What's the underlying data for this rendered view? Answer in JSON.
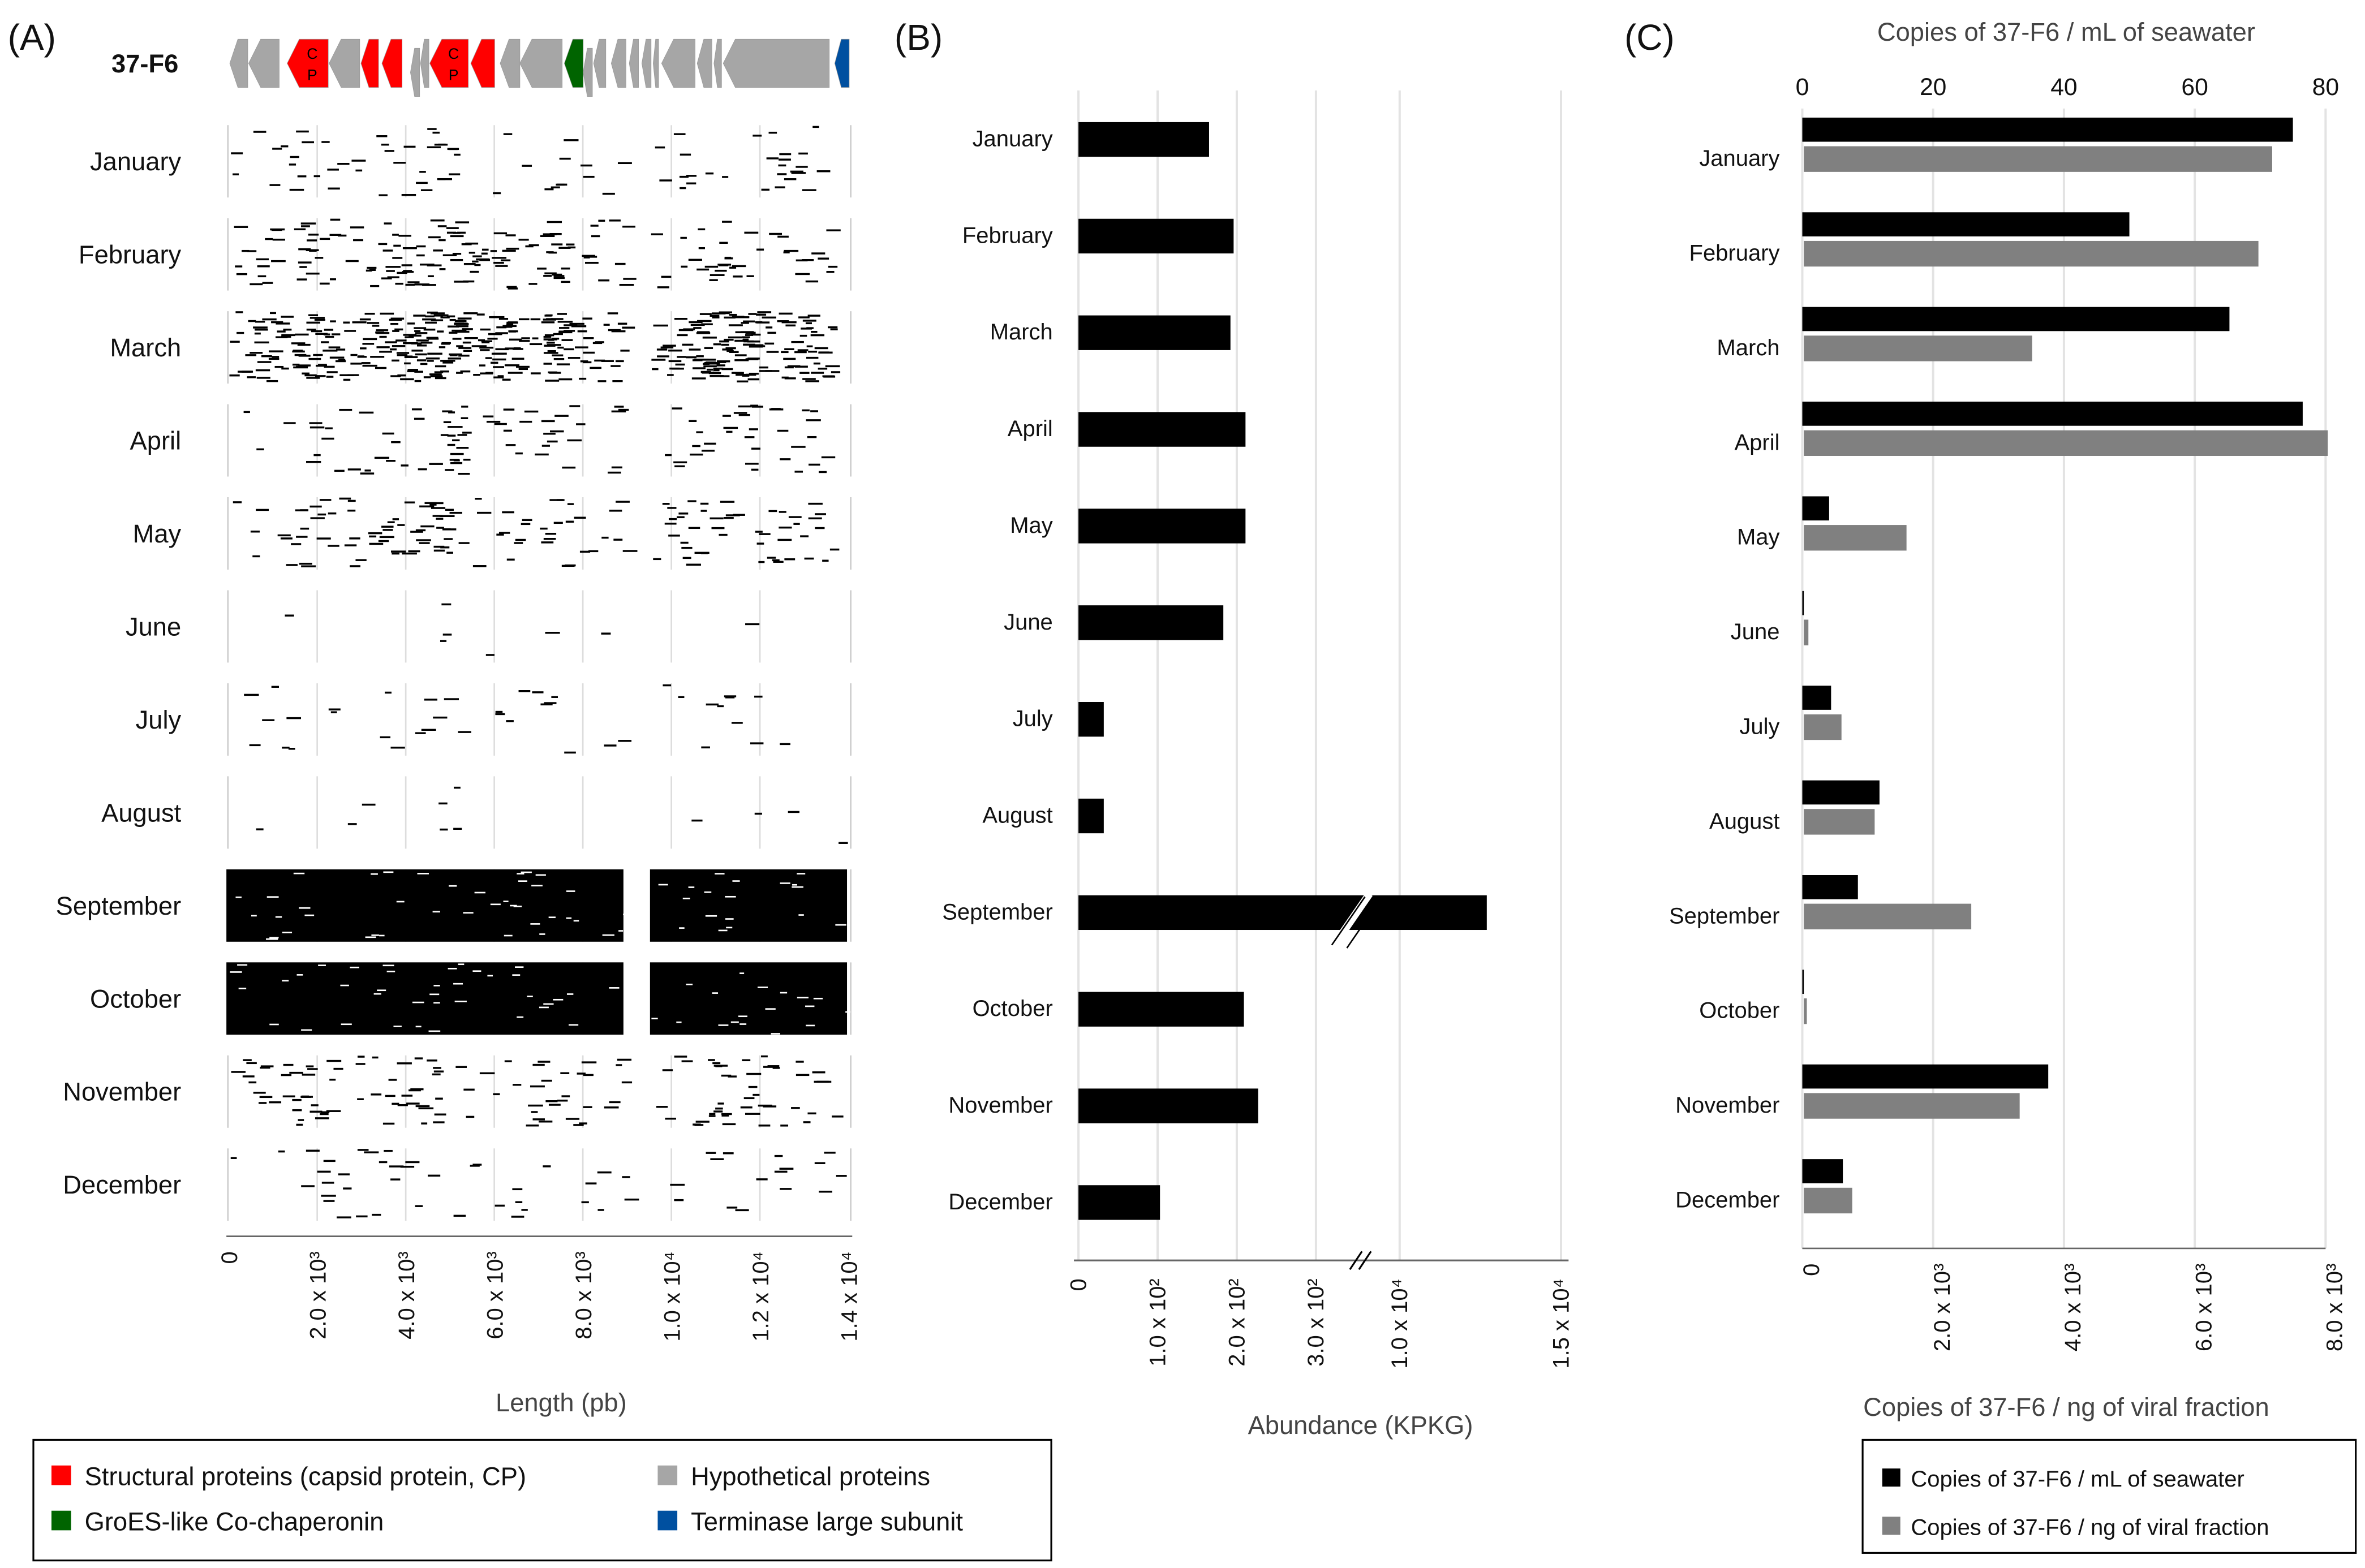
{
  "panel_labels": {
    "a": "(A)",
    "b": "(B)",
    "c": "(C)"
  },
  "colors": {
    "structural": "#ff0000",
    "hypothetical": "#a6a6a6",
    "groes": "#006400",
    "terminase": "#0050a0",
    "black_series": "#000000",
    "gray_series": "#808080"
  },
  "chart_data": [
    {
      "id": "A",
      "type": "scatter",
      "title": "37-F6",
      "xlabel": "Length (pb)",
      "xlim": [
        0,
        14000
      ],
      "x_ticks": [
        0,
        2000,
        4000,
        6000,
        8000,
        10000,
        12000,
        14000
      ],
      "x_tick_labels": [
        "0",
        "2.0 x 10³",
        "4.0 x 10³",
        "6.0 x 10³",
        "8.0 x 10³",
        "1.0 x 10⁴",
        "1.2 x 10⁴",
        "1.4 x 10⁴"
      ],
      "categories": [
        "January",
        "February",
        "March",
        "April",
        "May",
        "June",
        "July",
        "August",
        "September",
        "October",
        "November",
        "December"
      ],
      "read_density": [
        0.25,
        0.45,
        0.8,
        0.3,
        0.4,
        0.03,
        0.15,
        0.05,
        1,
        1,
        0.4,
        0.2
      ],
      "genes": [
        {
          "start": 8,
          "end": 415,
          "type": "hypothetical"
        },
        {
          "start": 434,
          "end": 1125,
          "type": "hypothetical"
        },
        {
          "start": 1305,
          "end": 2233,
          "type": "structural",
          "label": "CP"
        },
        {
          "start": 2252,
          "end": 2943,
          "type": "hypothetical"
        },
        {
          "start": 2972,
          "end": 3369,
          "type": "structural"
        },
        {
          "start": 3445,
          "end": 3900,
          "type": "structural"
        },
        {
          "start": 4089,
          "end": 4297,
          "type": "hypothetical",
          "offset": true
        },
        {
          "start": 4316,
          "end": 4506,
          "type": "hypothetical"
        },
        {
          "start": 4525,
          "end": 5396,
          "type": "structural",
          "label": "CP"
        },
        {
          "start": 5453,
          "end": 5992,
          "type": "structural"
        },
        {
          "start": 6116,
          "end": 6561,
          "type": "hypothetical"
        },
        {
          "start": 6561,
          "end": 7517,
          "type": "hypothetical"
        },
        {
          "start": 7565,
          "end": 7991,
          "type": "groes"
        },
        {
          "start": 7991,
          "end": 8199,
          "type": "hypothetical",
          "offset": true
        },
        {
          "start": 8227,
          "end": 8502,
          "type": "hypothetical"
        },
        {
          "start": 8625,
          "end": 8957,
          "type": "hypothetical"
        },
        {
          "start": 9032,
          "end": 9241,
          "type": "hypothetical"
        },
        {
          "start": 9316,
          "end": 9525,
          "type": "hypothetical"
        },
        {
          "start": 9572,
          "end": 9695,
          "type": "hypothetical"
        },
        {
          "start": 9762,
          "end": 10519,
          "type": "hypothetical"
        },
        {
          "start": 10566,
          "end": 10898,
          "type": "hypothetical"
        },
        {
          "start": 10945,
          "end": 11116,
          "type": "hypothetical"
        },
        {
          "start": 11154,
          "end": 13550,
          "type": "hypothetical"
        },
        {
          "start": 13673,
          "end": 14000,
          "type": "terminase"
        }
      ],
      "legend": [
        {
          "label": "Structural proteins (capsid protein, CP)",
          "type": "structural"
        },
        {
          "label": "Hypothetical proteins",
          "type": "hypothetical"
        },
        {
          "label": "GroES-like Co-chaperonin",
          "type": "groes"
        },
        {
          "label": "Terminase large subunit",
          "type": "terminase"
        }
      ]
    },
    {
      "id": "B",
      "type": "bar",
      "xlabel": "Abundance (KPKG)",
      "axis_break": [
        300,
        10000
      ],
      "x_ticks": [
        0,
        100,
        200,
        300,
        10000,
        15000
      ],
      "x_tick_labels": [
        "0",
        "1.0 x 10²",
        "2.0 x 10²",
        "3.0 x 10²",
        "1.0 x 10⁴",
        "1.5 x 10⁴"
      ],
      "categories": [
        "January",
        "February",
        "March",
        "April",
        "May",
        "June",
        "July",
        "August",
        "September",
        "October",
        "November",
        "December"
      ],
      "values": [
        165,
        196,
        192,
        211,
        211,
        183,
        32,
        32,
        12700,
        209,
        227,
        103
      ],
      "grid": true
    },
    {
      "id": "C",
      "type": "bar",
      "top_xlabel": "Copies of 37-F6 / mL of seawater",
      "bottom_xlabel": "Copies of 37-F6 / ng of viral fraction",
      "top_xlim": [
        0,
        80
      ],
      "top_ticks": [
        "0",
        "20",
        "40",
        "60",
        "80"
      ],
      "bottom_xlim": [
        0,
        8000
      ],
      "bottom_ticks": [
        "0",
        "2.0 x 10³",
        "4.0 x 10³",
        "6.0 x 10³",
        "8.0 x 10³"
      ],
      "categories": [
        "January",
        "February",
        "March",
        "April",
        "May",
        "June",
        "July",
        "August",
        "September",
        "October",
        "November",
        "December"
      ],
      "series": [
        {
          "name": "Copies of 37-F6 / mL of seawater",
          "axis": "top",
          "values": [
            75,
            50,
            65.3,
            76.5,
            4.1,
            0.2,
            4.4,
            11.8,
            8.5,
            0.2,
            37.6,
            6.2
          ]
        },
        {
          "name": "Copies of 37-F6 / ng of viral fraction",
          "axis": "bottom",
          "values": [
            7160,
            6950,
            3490,
            8010,
            1570,
            70,
            576,
            1083,
            2560,
            46,
            3300,
            740
          ]
        }
      ],
      "legend_position": "bottom",
      "grid": true
    }
  ]
}
